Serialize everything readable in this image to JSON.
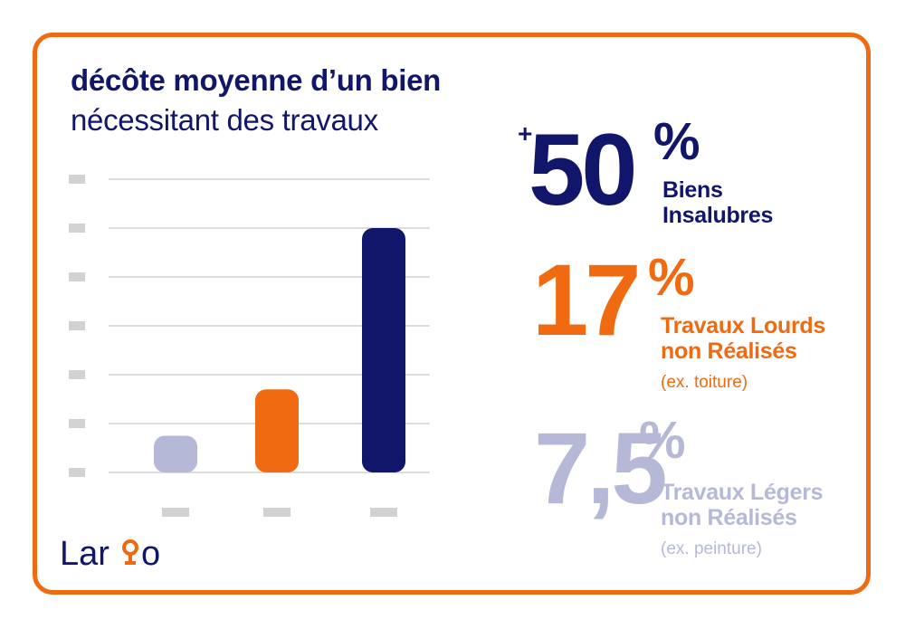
{
  "title": {
    "line1": "décôte moyenne d’un bien",
    "line2": "nécessitant des travaux"
  },
  "colors": {
    "navy": "#11166b",
    "orange": "#ef6a10",
    "lavender": "#b5b8d7",
    "grid": "#dcdcdc",
    "placeholder": "#d2d2d2"
  },
  "stats": [
    {
      "prefix": "+",
      "number": "50",
      "unit": "%",
      "label_lines": [
        "Biens",
        "Insalubres"
      ],
      "note": ""
    },
    {
      "prefix": "",
      "number": "17",
      "unit": "%",
      "label_lines": [
        "Travaux Lourds",
        "non Réalisés"
      ],
      "note": "(ex. toiture)"
    },
    {
      "prefix": "",
      "number": "7,5",
      "unit": "%",
      "label_lines": [
        "Travaux Légers",
        "non Réalisés"
      ],
      "note": "(ex. peinture)"
    }
  ],
  "chart_data": {
    "type": "bar",
    "categories": [
      "",
      "",
      ""
    ],
    "values": [
      7.5,
      17,
      50
    ],
    "colors": [
      "#b5b8d7",
      "#ef6a10",
      "#11166b"
    ],
    "ylim": [
      0,
      60
    ],
    "grid": true,
    "tick_labels_redacted": true,
    "title": "",
    "xlabel": "",
    "ylabel": ""
  },
  "logo": {
    "text_left": "Lar",
    "text_right": "o"
  }
}
